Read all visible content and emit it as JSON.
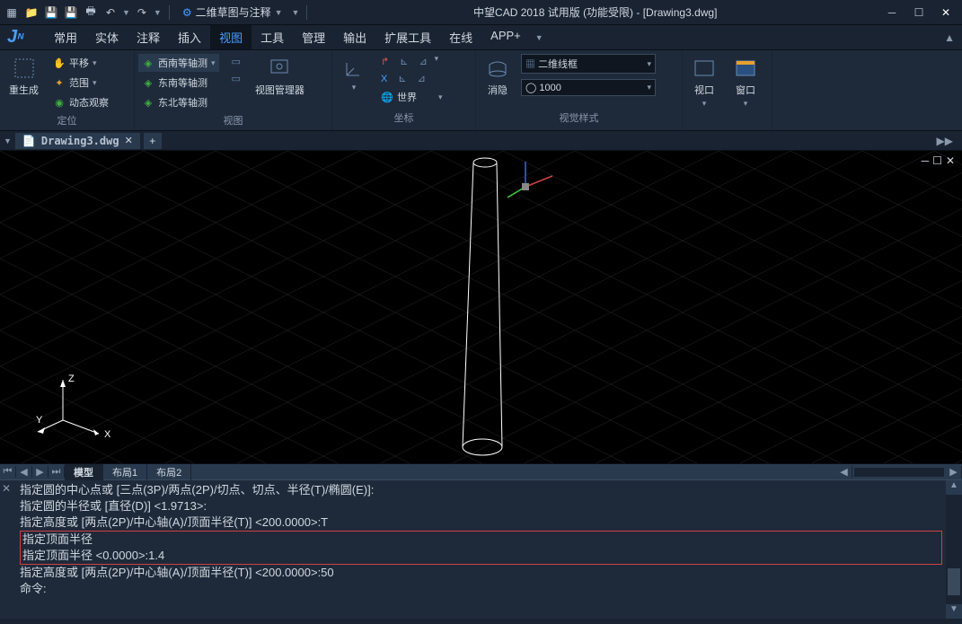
{
  "title": "中望CAD 2018 试用版 (功能受限) - [Drawing3.dwg]",
  "workspace": {
    "label": "二维草图与注释"
  },
  "menu": {
    "items": [
      "常用",
      "实体",
      "注释",
      "插入",
      "视图",
      "工具",
      "管理",
      "输出",
      "扩展工具",
      "在线",
      "APP+"
    ],
    "active_index": 4
  },
  "ribbon": {
    "panels": [
      {
        "title": "定位",
        "big": {
          "label": "重生成"
        },
        "smalls": [
          "平移",
          "范围",
          "动态观察"
        ]
      },
      {
        "title": "视图",
        "views": [
          "西南等轴测",
          "东南等轴测",
          "东北等轴测"
        ],
        "big": {
          "label": "视图管理器"
        }
      },
      {
        "title": "坐标",
        "world": "世界"
      },
      {
        "title": "视觉样式",
        "big": {
          "label": "消隐"
        },
        "style": "二维线框",
        "value": "1000"
      },
      {
        "viewport": "视口",
        "window": "窗口"
      }
    ]
  },
  "doc": {
    "filename": "Drawing3.dwg"
  },
  "layout": {
    "tabs": [
      "模型",
      "布局1",
      "布局2"
    ],
    "active": 0
  },
  "cmd": {
    "lines": [
      "指定圆的中心点或 [三点(3P)/两点(2P)/切点、切点、半径(T)/椭圆(E)]:",
      "指定圆的半径或 [直径(D)] <1.9713>:",
      "指定高度或 [两点(2P)/中心轴(A)/顶面半径(T)] <200.0000>:T",
      "指定顶面半径",
      "指定顶面半径 <0.0000>:1.4",
      "指定高度或 [两点(2P)/中心轴(A)/顶面半径(T)] <200.0000>:50",
      "命令:"
    ],
    "highlight_start": 3,
    "highlight_end": 4
  },
  "axes": {
    "x": "X",
    "y": "Y",
    "z": "Z"
  },
  "colors": {
    "bg": "#1a2332",
    "accent": "#4a9eff",
    "x": "#d04040",
    "y": "#40d040",
    "z": "#4060d0"
  }
}
